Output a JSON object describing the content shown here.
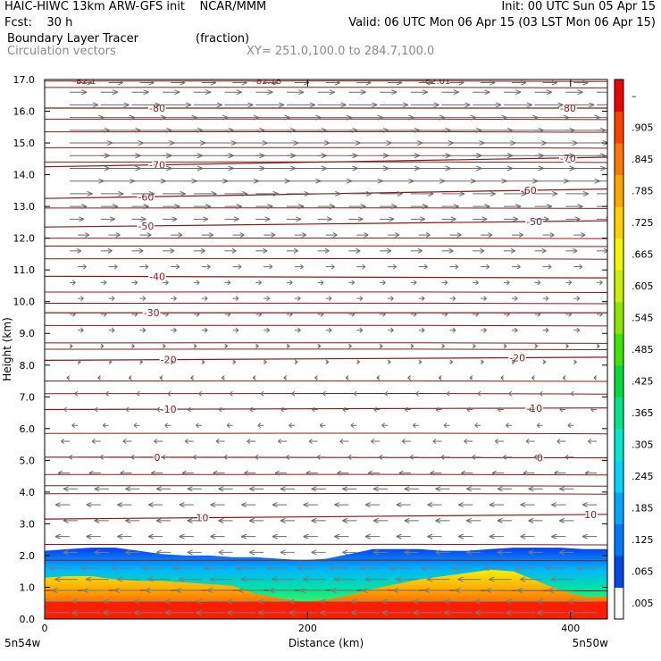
{
  "header": {
    "line1_left": "HAIC-HIWC 13km ARW-GFS init    NCAR/MMM",
    "line1_right": "Init: 00 UTC Sun 05 Apr 15",
    "line2_left": "Fcst:    30 h",
    "line2_right": "Valid: 06 UTC Mon 06 Apr 15 (03 LST Mon 06 Apr 15)",
    "line3_left": "Boundary Layer Tracer",
    "line3_mid": "(fraction)",
    "line4_left": "Circulation vectors",
    "line4_mid": "XY= 251.0,100.0 to 284.7,100.0"
  },
  "chart_data": {
    "type": "cross-section",
    "ylabel": "Height (km)",
    "xlabel": "Distance (km)",
    "yticks": [
      "0.0",
      "1.0",
      "2.0",
      "3.0",
      "4.0",
      "5.0",
      "6.0",
      "7.0",
      "8.0",
      "9.0",
      "10.0",
      "11.0",
      "12.0",
      "13.0",
      "14.0",
      "15.0",
      "16.0",
      "17.0"
    ],
    "ylim": [
      0,
      17
    ],
    "xticks": [
      "0",
      "200",
      "400"
    ],
    "xlim": [
      0,
      428
    ],
    "x_endpoints": [
      "5n54w",
      "5n50w"
    ],
    "colorbar_labels": [
      ".005",
      ".065",
      ".125",
      ".185",
      ".245",
      ".305",
      ".365",
      ".425",
      ".485",
      ".545",
      ".605",
      ".665",
      ".725",
      ".785",
      ".845",
      ".905",
      "–"
    ],
    "colorbar_colors": [
      "#ffffff",
      "#0047e6",
      "#0077ff",
      "#00a8ff",
      "#00d4ff",
      "#00e8d0",
      "#00e68a",
      "#00dc3c",
      "#3ce600",
      "#8ce600",
      "#c8f000",
      "#f5f500",
      "#ffd200",
      "#ffa500",
      "#ff7800",
      "#ff4000",
      "#f00000"
    ],
    "tracer_top_km": [
      2.15,
      2.2,
      2.25,
      2.25,
      2.15,
      2.05,
      2.0,
      2.0,
      1.95,
      1.95,
      1.9,
      1.85,
      1.9,
      2.05,
      2.2,
      2.2,
      2.2,
      2.15,
      2.15,
      2.2,
      2.25,
      2.25,
      2.25,
      2.2,
      2.2
    ],
    "tracer_core_km": [
      1.3,
      1.35,
      1.35,
      1.25,
      1.2,
      1.2,
      1.15,
      1.1,
      1.05,
      0.8,
      0.65,
      0.55,
      0.6,
      0.75,
      0.95,
      1.1,
      1.25,
      1.35,
      1.45,
      1.55,
      1.5,
      1.2,
      0.9,
      0.7,
      0.7
    ],
    "temperature_contours": [
      {
        "label": "10",
        "z0_km": 3.15,
        "z1_km": 3.3,
        "label_positions": [
          0.28,
          0.97
        ]
      },
      {
        "label": "0",
        "z0_km": 5.1,
        "z1_km": 5.08,
        "label_positions": [
          0.2,
          0.88
        ]
      },
      {
        "label": "-10",
        "z0_km": 6.6,
        "z1_km": 6.65,
        "label_positions": [
          0.22,
          0.87
        ]
      },
      {
        "label": "-20",
        "z0_km": 8.15,
        "z1_km": 8.25,
        "label_positions": [
          0.22,
          0.84
        ]
      },
      {
        "label": "-30",
        "z0_km": 9.65,
        "z1_km": 9.65,
        "label_positions": [
          0.19
        ]
      },
      {
        "label": "-40",
        "z0_km": 10.8,
        "z1_km": 10.75,
        "label_positions": [
          0.2
        ]
      },
      {
        "label": "-50",
        "z0_km": 12.35,
        "z1_km": 12.55,
        "label_positions": [
          0.18,
          0.87
        ]
      },
      {
        "label": "-60",
        "z0_km": 13.25,
        "z1_km": 13.55,
        "label_positions": [
          0.18,
          0.86
        ]
      },
      {
        "label": "-70",
        "z0_km": 14.25,
        "z1_km": 14.55,
        "label_positions": [
          0.2,
          0.93
        ]
      },
      {
        "label": "-80",
        "z0_km": 16.1,
        "z1_km": 16.1,
        "label_positions": [
          0.2,
          0.93
        ]
      }
    ],
    "extra_contour_levels_km": [
      0.9,
      1.85,
      2.35,
      3.95,
      4.2,
      4.55,
      5.85,
      7.1,
      7.5,
      8.5,
      8.7,
      9.25,
      9.95,
      10.3,
      11.35,
      11.75,
      12.0,
      12.95,
      14.4,
      14.85,
      15.35,
      15.75,
      16.75,
      16.95
    ],
    "top_labels": [
      {
        "label": "-82.1",
        "x_frac": 0.05
      },
      {
        "label": "-82.15",
        "x_frac": 0.37
      },
      {
        "label": "-82.01",
        "x_frac": 0.67
      }
    ],
    "wind_profile": [
      {
        "z_km": 0.2,
        "u": -10
      },
      {
        "z_km": 0.55,
        "u": -10
      },
      {
        "z_km": 0.9,
        "u": -9
      },
      {
        "z_km": 1.25,
        "u": -8
      },
      {
        "z_km": 1.6,
        "u": -7
      },
      {
        "z_km": 2.1,
        "u": -5
      },
      {
        "z_km": 2.6,
        "u": -5
      },
      {
        "z_km": 3.1,
        "u": -5
      },
      {
        "z_km": 3.6,
        "u": -5
      },
      {
        "z_km": 4.1,
        "u": -5
      },
      {
        "z_km": 4.6,
        "u": -4
      },
      {
        "z_km": 5.1,
        "u": -3
      },
      {
        "z_km": 5.6,
        "u": -3
      },
      {
        "z_km": 6.1,
        "u": -2
      },
      {
        "z_km": 6.6,
        "u": -2
      },
      {
        "z_km": 7.1,
        "u": -1
      },
      {
        "z_km": 7.6,
        "u": -1
      },
      {
        "z_km": 8.1,
        "u": 1
      },
      {
        "z_km": 8.6,
        "u": 1
      },
      {
        "z_km": 9.1,
        "u": 2
      },
      {
        "z_km": 9.6,
        "u": 2
      },
      {
        "z_km": 10.1,
        "u": 2
      },
      {
        "z_km": 10.6,
        "u": 2
      },
      {
        "z_km": 11.1,
        "u": 3
      },
      {
        "z_km": 11.6,
        "u": 4
      },
      {
        "z_km": 12.1,
        "u": 4
      },
      {
        "z_km": 12.6,
        "u": 5
      },
      {
        "z_km": 13.0,
        "u": 6
      },
      {
        "z_km": 13.4,
        "u": 8
      },
      {
        "z_km": 13.8,
        "u": 12
      },
      {
        "z_km": 14.2,
        "u": 14
      },
      {
        "z_km": 14.6,
        "u": 14
      },
      {
        "z_km": 15.0,
        "u": 15
      },
      {
        "z_km": 15.4,
        "u": 14
      },
      {
        "z_km": 15.8,
        "u": 12
      },
      {
        "z_km": 16.2,
        "u": 10
      },
      {
        "z_km": 16.6,
        "u": 6
      },
      {
        "z_km": 16.9,
        "u": 5
      }
    ]
  }
}
